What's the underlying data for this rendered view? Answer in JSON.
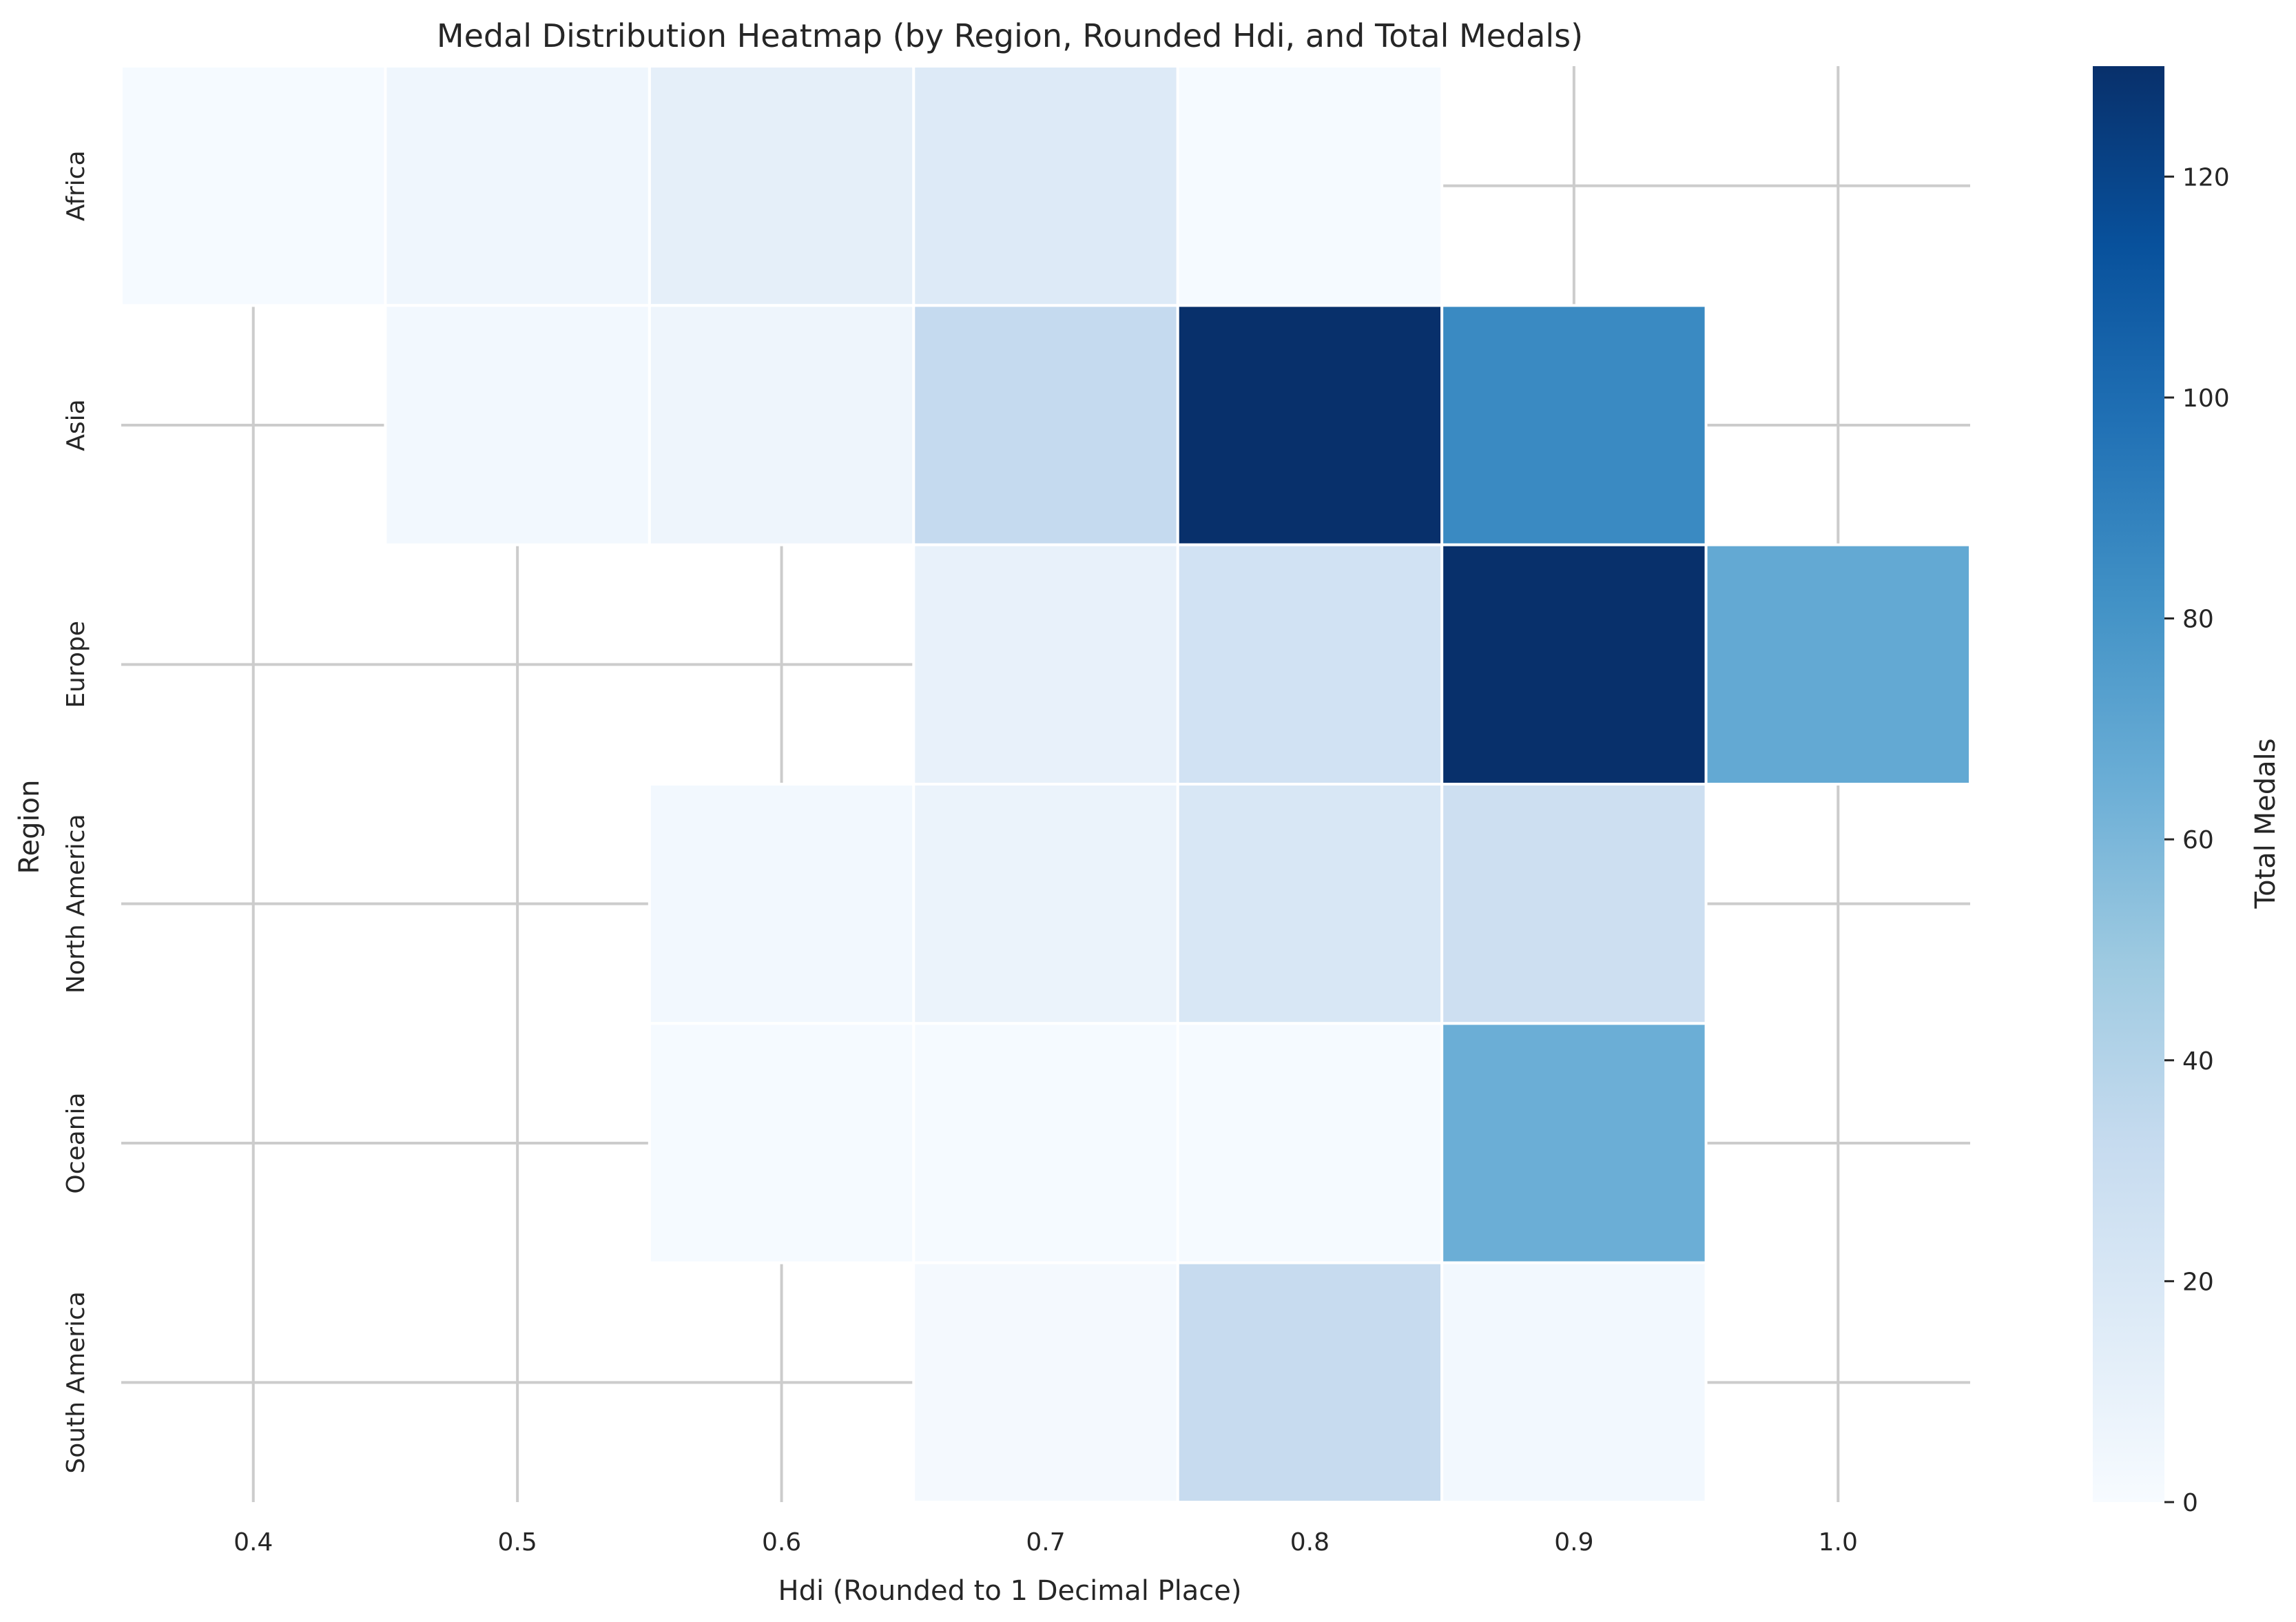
{
  "chart_data": {
    "type": "heatmap",
    "title": "Medal Distribution Heatmap (by Region, Rounded Hdi, and Total Medals)",
    "xlabel": "Hdi (Rounded to 1 Decimal Place)",
    "ylabel": "Region",
    "x": [
      "0.4",
      "0.5",
      "0.6",
      "0.7",
      "0.8",
      "0.9",
      "1.0"
    ],
    "y": [
      "Africa",
      "Asia",
      "Europe",
      "North America",
      "Oceania",
      "South America"
    ],
    "values": [
      [
        1,
        5,
        12,
        17,
        1,
        null,
        null
      ],
      [
        null,
        3,
        6,
        33,
        130,
        85,
        null
      ],
      [
        null,
        null,
        null,
        10,
        25,
        130,
        68
      ],
      [
        null,
        null,
        3,
        8,
        20,
        28,
        null
      ],
      [
        null,
        null,
        1,
        1,
        1,
        65,
        null
      ],
      [
        null,
        null,
        null,
        2,
        32,
        3,
        null
      ]
    ],
    "colorbar": {
      "label": "Total Medals",
      "min": 0,
      "max": 130,
      "ticks": [
        0,
        20,
        40,
        60,
        80,
        100,
        120
      ]
    },
    "colormap": {
      "name": "Blues",
      "stops": [
        "#f7fbff",
        "#deebf7",
        "#c6dbef",
        "#9ecae1",
        "#6baed6",
        "#4292c6",
        "#2171b5",
        "#08519c",
        "#08306b"
      ]
    },
    "grid": true,
    "grid_color": "#cccccc"
  }
}
